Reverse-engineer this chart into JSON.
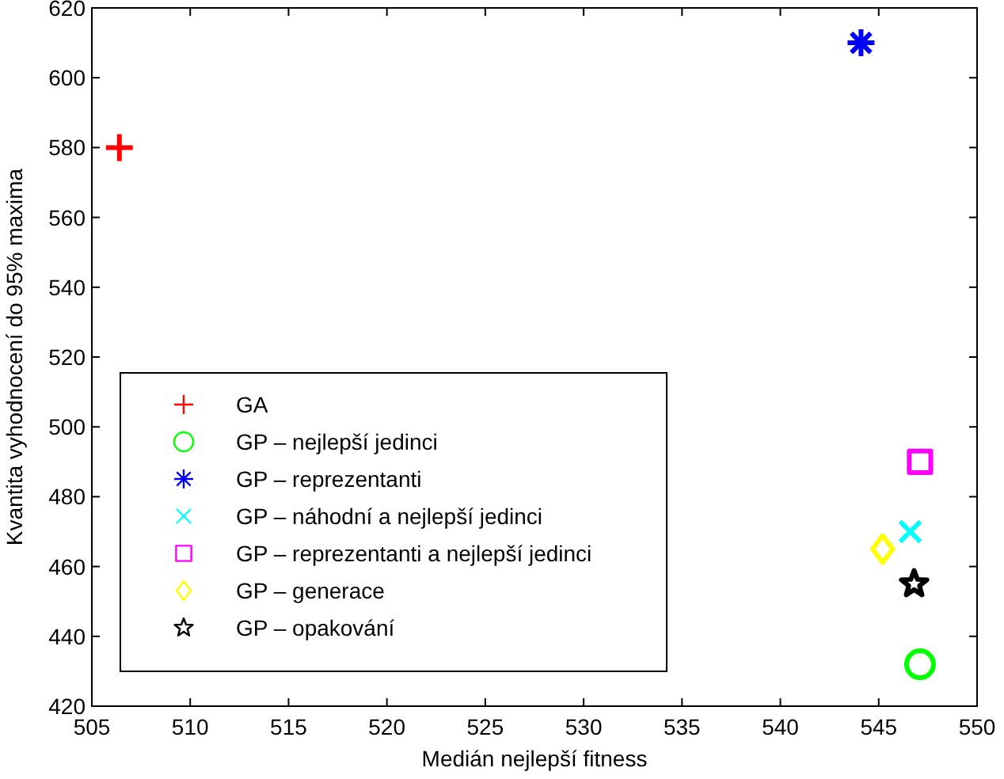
{
  "chart_data": {
    "type": "scatter",
    "xlabel": "Medián nejlepší fitness",
    "ylabel": "Kvantita vyhodnocení do 95% maxima",
    "xlim": [
      505,
      550
    ],
    "xticks": [
      505,
      510,
      515,
      520,
      525,
      530,
      535,
      540,
      545,
      550
    ],
    "ylim": [
      420,
      620
    ],
    "yticks": [
      420,
      440,
      460,
      480,
      500,
      520,
      540,
      560,
      580,
      600,
      620
    ],
    "grid": false,
    "legend": "bottom left",
    "series": [
      {
        "name": "GA",
        "color": "#ff0000",
        "marker": "plus",
        "x": [
          506.4
        ],
        "values": [
          580
        ]
      },
      {
        "name": "GP – nejlepší jedinci",
        "color": "#00ff00",
        "marker": "circle",
        "x": [
          547.1
        ],
        "values": [
          432
        ]
      },
      {
        "name": "GP – reprezentanti",
        "color": "#0000ff",
        "marker": "cross",
        "x": [
          544.1
        ],
        "values": [
          610
        ]
      },
      {
        "name": "GP – náhodní a nejlepší jedinci",
        "color": "#00ffff",
        "marker": "x",
        "x": [
          546.6
        ],
        "values": [
          470
        ]
      },
      {
        "name": "GP – reprezentanti a nejlepší jedinci",
        "color": "#ff00ff",
        "marker": "square",
        "x": [
          547.1
        ],
        "values": [
          490
        ]
      },
      {
        "name": "GP – generace",
        "color": "#ffff00",
        "marker": "diamond",
        "x": [
          545.2
        ],
        "values": [
          465
        ]
      },
      {
        "name": "GP – opakování",
        "color": "#000000",
        "marker": "star",
        "x": [
          546.8
        ],
        "values": [
          455
        ]
      }
    ]
  }
}
